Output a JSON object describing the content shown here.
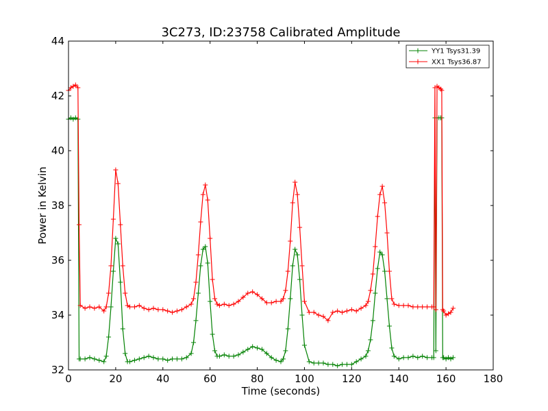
{
  "chart_data": {
    "type": "line",
    "title": "3C273, ID:23758 Calibrated Amplitude",
    "xlabel": "Time (seconds)",
    "ylabel": "Power in Kelvin",
    "xlim": [
      0,
      180
    ],
    "ylim": [
      32,
      44
    ],
    "xticks": [
      0,
      20,
      40,
      60,
      80,
      100,
      120,
      140,
      160,
      180
    ],
    "yticks": [
      32,
      34,
      36,
      38,
      40,
      42,
      44
    ],
    "grid": false,
    "legend_position": "top-right",
    "marker": "plus",
    "series": [
      {
        "name": "YY1 Tsys31.39",
        "color": "#008000",
        "x": [
          0,
          1,
          2,
          3,
          4,
          4.5,
          5,
          7,
          9,
          11,
          13,
          15,
          16,
          17,
          18,
          19,
          20,
          21,
          22,
          23,
          24,
          25,
          26,
          28,
          30,
          32,
          34,
          36,
          38,
          40,
          42,
          44,
          46,
          48,
          50,
          52,
          53,
          54,
          55,
          56,
          57,
          58,
          59,
          60,
          61,
          62,
          63,
          64,
          66,
          68,
          70,
          72,
          74,
          76,
          78,
          80,
          82,
          84,
          86,
          88,
          90,
          91,
          92,
          93,
          94,
          95,
          96,
          97,
          98,
          99,
          100,
          102,
          104,
          106,
          108,
          110,
          112,
          114,
          116,
          118,
          120,
          122,
          124,
          126,
          127,
          128,
          129,
          130,
          131,
          132,
          133,
          134,
          135,
          136,
          137,
          138,
          140,
          142,
          144,
          146,
          148,
          150,
          152,
          154,
          154.8,
          155.3,
          155.7,
          156.2,
          157,
          157.8,
          158.2,
          158.6,
          159,
          160,
          161,
          162,
          163
        ],
        "values": [
          41.15,
          41.2,
          41.15,
          41.2,
          41.15,
          32.4,
          32.4,
          32.4,
          32.45,
          32.4,
          32.35,
          32.3,
          32.5,
          33.2,
          34.3,
          35.6,
          36.8,
          36.6,
          35.2,
          33.5,
          32.6,
          32.3,
          32.3,
          32.35,
          32.4,
          32.45,
          32.5,
          32.45,
          32.4,
          32.4,
          32.35,
          32.4,
          32.4,
          32.4,
          32.45,
          32.6,
          33.0,
          33.8,
          34.8,
          35.8,
          36.4,
          36.5,
          35.9,
          34.5,
          33.3,
          32.7,
          32.5,
          32.5,
          32.55,
          32.5,
          32.5,
          32.55,
          32.65,
          32.75,
          32.85,
          32.8,
          32.75,
          32.6,
          32.45,
          32.35,
          32.3,
          32.4,
          32.7,
          33.5,
          34.6,
          35.8,
          36.4,
          36.2,
          35.3,
          34.0,
          32.9,
          32.3,
          32.25,
          32.25,
          32.25,
          32.2,
          32.2,
          32.15,
          32.2,
          32.2,
          32.2,
          32.3,
          32.4,
          32.5,
          32.7,
          33.1,
          33.8,
          34.8,
          35.7,
          36.3,
          36.2,
          35.6,
          34.6,
          33.6,
          32.8,
          32.5,
          32.4,
          32.45,
          32.45,
          32.5,
          32.45,
          32.5,
          32.45,
          32.45,
          32.45,
          41.2,
          32.7,
          41.2,
          41.2,
          41.2,
          41.2,
          32.45,
          32.45,
          32.4,
          32.45,
          32.4,
          32.45
        ]
      },
      {
        "name": "XX1 Tsys36.87",
        "color": "#ff0000",
        "x": [
          0,
          1,
          2,
          3,
          4,
          4.5,
          5,
          7,
          9,
          11,
          13,
          15,
          16,
          17,
          18,
          19,
          20,
          21,
          22,
          23,
          24,
          25,
          26,
          28,
          30,
          32,
          34,
          36,
          38,
          40,
          42,
          44,
          46,
          48,
          50,
          52,
          53,
          54,
          55,
          56,
          57,
          58,
          59,
          60,
          61,
          62,
          63,
          64,
          66,
          68,
          70,
          72,
          74,
          76,
          78,
          80,
          82,
          84,
          86,
          88,
          90,
          91,
          92,
          93,
          94,
          95,
          96,
          97,
          98,
          99,
          100,
          102,
          104,
          106,
          108,
          110,
          112,
          114,
          116,
          118,
          120,
          122,
          124,
          126,
          127,
          128,
          129,
          130,
          131,
          132,
          133,
          134,
          135,
          136,
          137,
          138,
          140,
          142,
          144,
          146,
          148,
          150,
          152,
          154,
          154.8,
          155.3,
          155.7,
          156.2,
          157,
          157.8,
          158.2,
          158.6,
          159,
          160,
          161,
          162,
          163
        ],
        "values": [
          42.2,
          42.3,
          42.35,
          42.4,
          42.3,
          37.3,
          34.35,
          34.25,
          34.3,
          34.25,
          34.3,
          34.15,
          34.3,
          34.8,
          35.8,
          37.5,
          39.3,
          38.8,
          37.3,
          35.8,
          34.8,
          34.35,
          34.3,
          34.3,
          34.35,
          34.25,
          34.2,
          34.25,
          34.2,
          34.2,
          34.15,
          34.1,
          34.15,
          34.2,
          34.3,
          34.4,
          34.6,
          35.2,
          36.2,
          37.4,
          38.4,
          38.75,
          38.2,
          36.8,
          35.3,
          34.6,
          34.4,
          34.35,
          34.4,
          34.35,
          34.4,
          34.5,
          34.65,
          34.8,
          34.85,
          34.75,
          34.6,
          34.45,
          34.45,
          34.5,
          34.5,
          34.6,
          34.9,
          35.6,
          36.7,
          38.1,
          38.85,
          38.4,
          37.2,
          35.8,
          34.5,
          34.1,
          34.1,
          34.0,
          33.95,
          33.8,
          34.1,
          34.15,
          34.1,
          34.15,
          34.2,
          34.15,
          34.25,
          34.35,
          34.5,
          34.9,
          35.5,
          36.5,
          37.6,
          38.4,
          38.7,
          38.1,
          37.0,
          35.6,
          34.6,
          34.4,
          34.35,
          34.35,
          34.35,
          34.3,
          34.3,
          34.3,
          34.3,
          34.3,
          34.3,
          42.3,
          34.2,
          42.35,
          42.3,
          42.25,
          42.2,
          34.2,
          34.15,
          34.0,
          34.05,
          34.1,
          34.25
        ]
      }
    ]
  }
}
